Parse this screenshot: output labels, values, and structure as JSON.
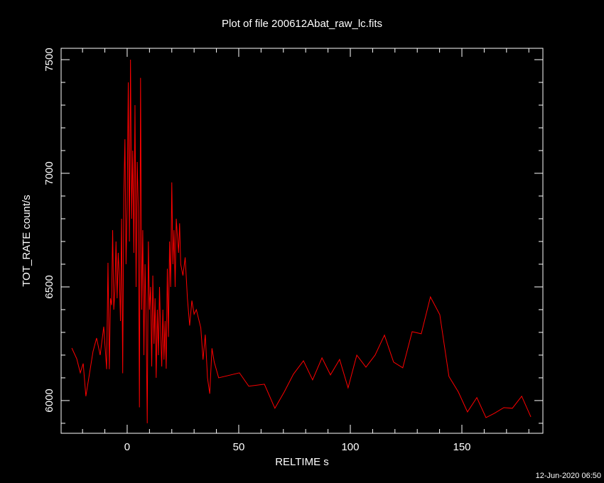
{
  "chart_data": {
    "type": "line",
    "title": "Plot of file 200612Abat_raw_lc.fits",
    "x_label": "RELTIME  s",
    "y_label": "TOT_RATE  count/s",
    "timestamp": "12-Jun-2020 06:50",
    "xlim": [
      -29.6,
      186.3
    ],
    "ylim": [
      5856,
      7550
    ],
    "xticks": [
      0,
      50,
      100,
      150
    ],
    "yticks": [
      6000,
      6500,
      7000,
      7500
    ],
    "xminorticks": [
      -20,
      -10,
      10,
      20,
      30,
      40,
      60,
      70,
      80,
      90,
      110,
      120,
      130,
      140,
      160,
      170,
      180
    ],
    "yminorticks": [
      5900,
      6100,
      6200,
      6300,
      6400,
      6600,
      6700,
      6800,
      6900,
      7100,
      7200,
      7300,
      7400
    ],
    "series": [
      {
        "name": "TOT_RATE",
        "color": "#ff0000",
        "x": [
          -24.8,
          -22.6,
          -21,
          -19.7,
          -18.5,
          -15.3,
          -13.7,
          -12.1,
          -10.5,
          -9.2,
          -8.6,
          -8,
          -7.5,
          -7,
          -6.5,
          -6,
          -5.5,
          -5,
          -4.5,
          -4,
          -3.5,
          -3,
          -2.5,
          -2,
          -1.5,
          -1,
          -0.5,
          0,
          0.5,
          1,
          1.5,
          2,
          2.5,
          3,
          3.5,
          4,
          4.5,
          5,
          5.5,
          6,
          6.5,
          7,
          7.5,
          8,
          8.5,
          9,
          9.5,
          10,
          10.5,
          11,
          11.5,
          12,
          12.5,
          13,
          13.5,
          14,
          14.5,
          15,
          15.5,
          16,
          16.5,
          17,
          17.5,
          18,
          18.5,
          19,
          19.5,
          20,
          20.5,
          21,
          21.5,
          22,
          23,
          23.5,
          24,
          25,
          26,
          27,
          28,
          29,
          30,
          31,
          32,
          33,
          34,
          35,
          36,
          37,
          38,
          39,
          41,
          50.3,
          54.5,
          61.5,
          66.2,
          70.4,
          74.5,
          79,
          83.1,
          87.3,
          91.1,
          95.2,
          99,
          102.9,
          107,
          111.1,
          115.3,
          119.4,
          123.5,
          127.7,
          131.8,
          135.9,
          140.1,
          144.2,
          148.4,
          152.5,
          156.7,
          160.8,
          164.6,
          168.8,
          172.6,
          176.8,
          180.9
        ],
        "values": [
          6231,
          6184,
          6122,
          6163,
          6019,
          6216,
          6275,
          6200,
          6325,
          6138,
          6606,
          6138,
          6450,
          6420,
          6750,
          6400,
          6480,
          6700,
          6450,
          6650,
          6550,
          6350,
          6800,
          6120,
          6900,
          7150,
          6600,
          6850,
          7400,
          6700,
          7500,
          6800,
          7100,
          6650,
          7300,
          6500,
          7050,
          6850,
          5970,
          7420,
          6400,
          6750,
          6200,
          6600,
          6350,
          5900,
          6700,
          6400,
          6500,
          6150,
          6550,
          6250,
          6450,
          6100,
          6400,
          6200,
          6500,
          6300,
          6150,
          6400,
          6180,
          6350,
          6140,
          6580,
          6280,
          6700,
          6500,
          6960,
          6600,
          6750,
          6500,
          6800,
          6650,
          6780,
          6600,
          6550,
          6630,
          6450,
          6330,
          6440,
          6380,
          6400,
          6360,
          6320,
          6180,
          6290,
          6100,
          6030,
          6230,
          6170,
          6100,
          6122,
          6063,
          6072,
          5966,
          6038,
          6116,
          6175,
          6091,
          6188,
          6113,
          6181,
          6056,
          6200,
          6147,
          6200,
          6288,
          6169,
          6144,
          6303,
          6294,
          6456,
          6378,
          6106,
          6038,
          5950,
          6013,
          5925,
          5944,
          5969,
          5966,
          6019,
          5928
        ]
      }
    ]
  }
}
